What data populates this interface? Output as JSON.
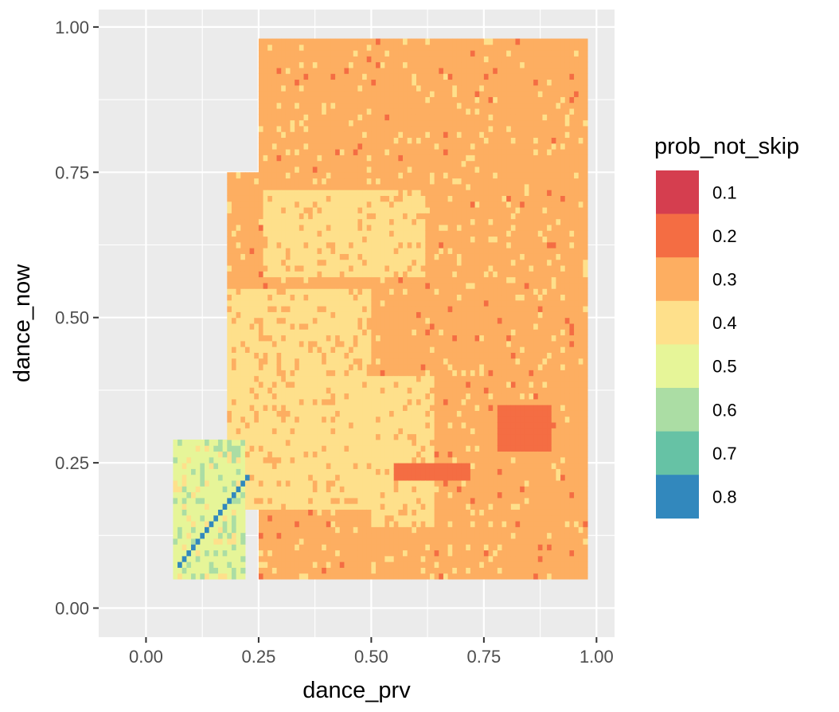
{
  "chart_data": {
    "type": "heatmap",
    "title": "",
    "xlabel": "dance_prv",
    "ylabel": "dance_now",
    "xlim": [
      -0.105,
      1.04
    ],
    "ylim": [
      -0.05,
      1.03
    ],
    "x_ticks": [
      {
        "value": 0.0,
        "label": "0.00"
      },
      {
        "value": 0.25,
        "label": "0.25"
      },
      {
        "value": 0.5,
        "label": "0.50"
      },
      {
        "value": 0.75,
        "label": "0.75"
      },
      {
        "value": 1.0,
        "label": "1.00"
      }
    ],
    "y_ticks": [
      {
        "value": 0.0,
        "label": "0.00"
      },
      {
        "value": 0.25,
        "label": "0.25"
      },
      {
        "value": 0.5,
        "label": "0.50"
      },
      {
        "value": 0.75,
        "label": "0.75"
      },
      {
        "value": 1.0,
        "label": "1.00"
      }
    ],
    "grid": true,
    "panel_background": "#ebebeb",
    "grid_color": "#ffffff",
    "legend": {
      "title": "prob_not_skip",
      "position": "right",
      "entries": [
        {
          "label": "0.1",
          "value": 0.1,
          "color": "#d53e4f"
        },
        {
          "label": "0.2",
          "value": 0.2,
          "color": "#f46d43"
        },
        {
          "label": "0.3",
          "value": 0.3,
          "color": "#fdae61"
        },
        {
          "label": "0.4",
          "value": 0.4,
          "color": "#fee08b"
        },
        {
          "label": "0.5",
          "value": 0.5,
          "color": "#e6f598"
        },
        {
          "label": "0.6",
          "value": 0.6,
          "color": "#abdda4"
        },
        {
          "label": "0.7",
          "value": 0.7,
          "color": "#66c2a5"
        },
        {
          "label": "0.8",
          "value": 0.8,
          "color": "#3288bd"
        }
      ]
    },
    "regions": [
      {
        "class": 0.3,
        "polygon": [
          [
            0.25,
            0.98
          ],
          [
            0.98,
            0.98
          ],
          [
            0.98,
            0.05
          ],
          [
            0.25,
            0.05
          ]
        ]
      },
      {
        "class": 0.3,
        "polygon": [
          [
            0.18,
            0.75
          ],
          [
            0.26,
            0.75
          ],
          [
            0.26,
            0.55
          ],
          [
            0.18,
            0.55
          ]
        ]
      },
      {
        "class": 0.4,
        "polygon": [
          [
            0.18,
            0.55
          ],
          [
            0.5,
            0.55
          ],
          [
            0.5,
            0.17
          ],
          [
            0.18,
            0.17
          ]
        ]
      },
      {
        "class": 0.4,
        "polygon": [
          [
            0.5,
            0.4
          ],
          [
            0.64,
            0.4
          ],
          [
            0.64,
            0.14
          ],
          [
            0.5,
            0.14
          ]
        ]
      },
      {
        "class": 0.4,
        "polygon": [
          [
            0.26,
            0.72
          ],
          [
            0.62,
            0.72
          ],
          [
            0.62,
            0.57
          ],
          [
            0.26,
            0.57
          ]
        ]
      },
      {
        "class": 0.5,
        "polygon": [
          [
            0.06,
            0.29
          ],
          [
            0.22,
            0.29
          ],
          [
            0.22,
            0.05
          ],
          [
            0.06,
            0.05
          ]
        ]
      },
      {
        "class": 0.2,
        "polygon": [
          [
            0.55,
            0.25
          ],
          [
            0.72,
            0.25
          ],
          [
            0.72,
            0.22
          ],
          [
            0.55,
            0.22
          ]
        ]
      },
      {
        "class": 0.2,
        "polygon": [
          [
            0.78,
            0.35
          ],
          [
            0.9,
            0.35
          ],
          [
            0.9,
            0.27
          ],
          [
            0.78,
            0.27
          ]
        ]
      }
    ],
    "diagonal": {
      "from": 0.07,
      "to": 0.22,
      "class": 0.8
    },
    "bin_width": 0.01
  }
}
